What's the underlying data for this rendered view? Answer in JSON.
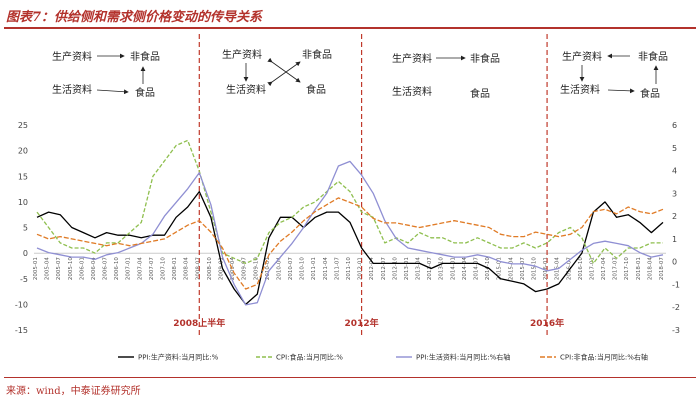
{
  "header": {
    "title": "图表7：供给侧和需求侧价格变动的传导关系"
  },
  "footer": {
    "source": "来源：wind，中泰证券研究所"
  },
  "phases": [
    {
      "producer": "生产资料",
      "nonfood": "非食品",
      "living": "生活资料",
      "food": "食品"
    },
    {
      "producer": "生产资料",
      "nonfood": "非食品",
      "living": "生活资料",
      "food": "食品"
    },
    {
      "producer": "生产资料",
      "nonfood": "非食品",
      "living": "生活资料",
      "food": "食品"
    },
    {
      "producer": "生产资料",
      "nonfood": "非食品",
      "living": "生活资料",
      "food": "食品"
    }
  ],
  "chart_data": {
    "type": "line",
    "title": "",
    "x": [
      "2005-01",
      "2005-04",
      "2005-07",
      "2005-10",
      "2006-01",
      "2006-04",
      "2006-07",
      "2006-10",
      "2007-01",
      "2007-04",
      "2007-07",
      "2007-10",
      "2008-01",
      "2008-04",
      "2008-07",
      "2008-10",
      "2009-01",
      "2009-04",
      "2009-07",
      "2009-10",
      "2010-01",
      "2010-04",
      "2010-07",
      "2010-10",
      "2011-01",
      "2011-04",
      "2011-07",
      "2011-10",
      "2012-01",
      "2012-04",
      "2012-07",
      "2012-10",
      "2013-01",
      "2013-04",
      "2013-07",
      "2013-10",
      "2014-01",
      "2014-04",
      "2014-07",
      "2014-10",
      "2015-01",
      "2015-04",
      "2015-07",
      "2015-10",
      "2016-01",
      "2016-04",
      "2016-07",
      "2016-10",
      "2017-01",
      "2017-04",
      "2017-07",
      "2017-10",
      "2018-01",
      "2018-04",
      "2018-07"
    ],
    "x_tick_labels": [
      "2005-01",
      "2005-04",
      "2005-07",
      "2005-10",
      "2006-01",
      "2006-04",
      "2006-07",
      "2006-10",
      "2007-01",
      "2007-04",
      "2007-07",
      "2007-10",
      "2008-01",
      "2008-04",
      "2008-07",
      "2008-10",
      "2009-01",
      "2009-04",
      "2009-07",
      "2009-10",
      "2010-01",
      "2010-04",
      "2010-07",
      "2010-10",
      "2011-01",
      "2011-04",
      "2011-07",
      "2011-10",
      "2012-01",
      "2012-04",
      "2012-07",
      "2012-10",
      "2013-01",
      "2013-04",
      "2013-07",
      "2013-10",
      "2014-01",
      "2014-04",
      "2014-07",
      "2014-10",
      "2015-01",
      "2015-04",
      "2015-07",
      "2015-10",
      "2016-01",
      "2016-04",
      "2016-07",
      "2016-10",
      "2017-01",
      "2017-04",
      "2017-07",
      "2017-10",
      "2018-01",
      "2018-04",
      "2018-07"
    ],
    "y_left": {
      "min": -15,
      "max": 25,
      "ticks": [
        25,
        20,
        15,
        10,
        5,
        0,
        -5,
        -10,
        -15
      ]
    },
    "y_right": {
      "min": -3,
      "max": 6,
      "ticks": [
        6,
        5,
        4,
        3,
        2,
        1,
        0,
        -1,
        -2,
        -3
      ]
    },
    "eras": [
      {
        "label": "2008上半年",
        "x": "2008-07"
      },
      {
        "label": "2012年",
        "x": "2012-01"
      },
      {
        "label": "2016年",
        "x": "2016-01"
      }
    ],
    "series": [
      {
        "name": "PPI:生产资料:当月同比:%",
        "axis": "left",
        "color": "#000000",
        "dash": "",
        "values": [
          7,
          8,
          7.5,
          5,
          4,
          3,
          4,
          3.5,
          3.5,
          3,
          3.5,
          3.5,
          7,
          9,
          12,
          7,
          -3,
          -7,
          -10,
          -8,
          3,
          7,
          7,
          5,
          7,
          8,
          8,
          6,
          1,
          -2,
          -2,
          -2,
          -2,
          -2,
          -3,
          -2,
          -2,
          -2,
          -2,
          -3,
          -5,
          -5.5,
          -6,
          -7.5,
          -7,
          -6,
          -3,
          0,
          8,
          10,
          7,
          7.5,
          6,
          4,
          6
        ]
      },
      {
        "name": "CPI:食品:当月同比:%",
        "axis": "left",
        "color": "#8fbf4f",
        "dash": "4,2",
        "values": [
          8,
          5,
          2,
          1,
          1,
          0,
          2,
          2,
          4,
          6,
          15,
          18,
          21,
          22,
          16,
          8,
          0,
          -1,
          -2,
          -1,
          4,
          6,
          7,
          9,
          10,
          12,
          14,
          12,
          8,
          7,
          2,
          3,
          2,
          4,
          3,
          3,
          2,
          2,
          3,
          2,
          1,
          1,
          2,
          1,
          2,
          4,
          5,
          3,
          -2,
          1,
          -1,
          1,
          1,
          2,
          2
        ]
      },
      {
        "name": "PPI:生活资料:当月同比:%右轴",
        "axis": "right",
        "color": "#8f8fd3",
        "dash": "",
        "values": [
          0.6,
          0.4,
          0.3,
          0.2,
          0.2,
          0.1,
          0.3,
          0.4,
          0.6,
          0.8,
          1.2,
          2.0,
          2.6,
          3.2,
          3.9,
          2.5,
          0.2,
          -1.0,
          -1.9,
          -1.8,
          -0.4,
          0.2,
          0.8,
          1.5,
          2.3,
          3.0,
          4.2,
          4.4,
          3.8,
          3.0,
          1.8,
          1.0,
          0.6,
          0.5,
          0.4,
          0.3,
          0.2,
          0.2,
          0.3,
          0.2,
          0.0,
          -0.1,
          -0.1,
          -0.2,
          -0.4,
          -0.3,
          0.1,
          0.5,
          0.8,
          0.9,
          0.8,
          0.7,
          0.4,
          0.2,
          0.3
        ]
      },
      {
        "name": "CPI:非食品:当月同比:%右轴",
        "axis": "right",
        "color": "#e07b26",
        "dash": "5,2",
        "values": [
          1.2,
          1.0,
          1.1,
          1.0,
          0.9,
          0.8,
          0.7,
          0.8,
          0.7,
          0.8,
          0.9,
          1.0,
          1.3,
          1.6,
          1.8,
          1.3,
          0.6,
          -0.5,
          -1.2,
          -1.0,
          0.3,
          0.9,
          1.3,
          1.8,
          2.2,
          2.5,
          2.8,
          2.6,
          2.4,
          1.9,
          1.7,
          1.7,
          1.6,
          1.5,
          1.6,
          1.7,
          1.8,
          1.7,
          1.6,
          1.5,
          1.2,
          1.1,
          1.1,
          1.3,
          1.2,
          1.1,
          1.2,
          1.5,
          2.2,
          2.3,
          2.1,
          2.4,
          2.2,
          2.1,
          2.3
        ]
      }
    ]
  }
}
